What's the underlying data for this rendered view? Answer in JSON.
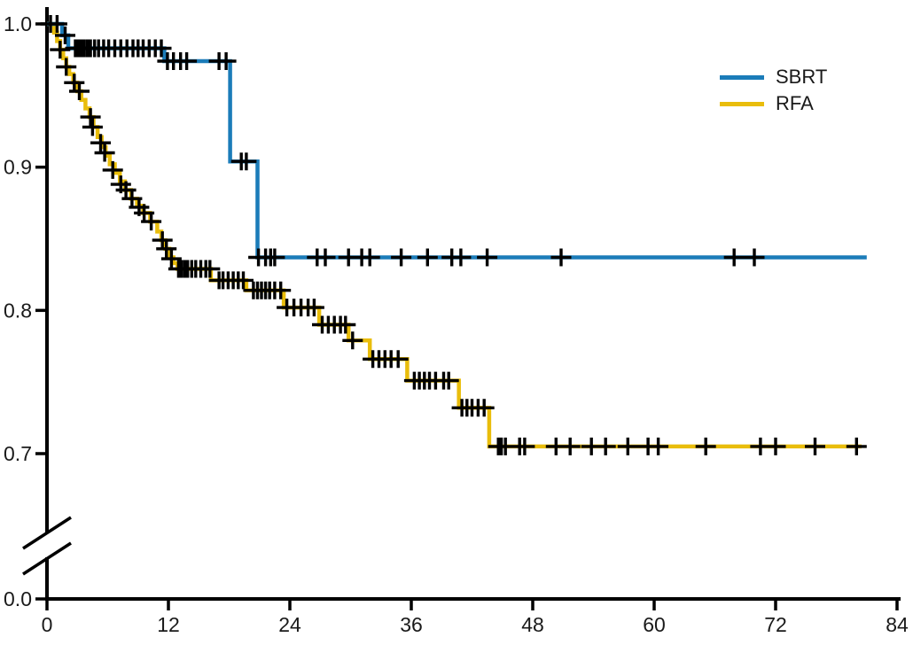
{
  "figure": {
    "kind": "kaplan-meier-survival-plot",
    "background": "#ffffff"
  },
  "axes": {
    "x_tick_labels": [
      "0",
      "12",
      "24",
      "36",
      "48",
      "60",
      "72",
      "84"
    ],
    "x_tick_values": [
      0,
      12,
      24,
      36,
      48,
      60,
      72,
      84
    ],
    "y_tick_labels": [
      "1.0",
      "0.9",
      "0.8",
      "0.7",
      "0.0"
    ],
    "y_tick_values": [
      1.0,
      0.9,
      0.8,
      0.7,
      0.0
    ],
    "y_axis_break": true,
    "axis_color": "#000000"
  },
  "legend": {
    "position": "top-right"
  },
  "chart_data": {
    "type": "line",
    "subtype": "kaplan-meier-step",
    "title": "",
    "xlabel": "",
    "ylabel": "",
    "x_range": [
      0,
      84
    ],
    "y_shown_range": [
      0.7,
      1.0
    ],
    "y_axis_break_between": [
      0.0,
      0.7
    ],
    "grid": false,
    "legend_position": "top-right",
    "censor_marker": "plus",
    "series": [
      {
        "name": "SBRT",
        "color": "#1b7cb9",
        "end_month": 81,
        "steps": [
          [
            0,
            1.0
          ],
          [
            1.5,
            0.992
          ],
          [
            2.1,
            0.983
          ],
          [
            11.6,
            0.974
          ],
          [
            18.1,
            0.904
          ],
          [
            20.8,
            0.837
          ]
        ],
        "censors": [
          [
            0.35,
            1.0
          ],
          [
            1.0,
            1.0
          ],
          [
            1.8,
            0.992
          ],
          [
            2.8,
            0.983
          ],
          [
            3.1,
            0.983
          ],
          [
            3.4,
            0.983
          ],
          [
            3.7,
            0.983
          ],
          [
            4.0,
            0.983
          ],
          [
            4.3,
            0.983
          ],
          [
            4.7,
            0.983
          ],
          [
            5.1,
            0.983
          ],
          [
            5.6,
            0.983
          ],
          [
            6.1,
            0.983
          ],
          [
            6.7,
            0.983
          ],
          [
            7.3,
            0.983
          ],
          [
            7.9,
            0.983
          ],
          [
            8.5,
            0.983
          ],
          [
            9.0,
            0.983
          ],
          [
            9.5,
            0.983
          ],
          [
            10.1,
            0.983
          ],
          [
            10.7,
            0.983
          ],
          [
            11.3,
            0.983
          ],
          [
            11.9,
            0.974
          ],
          [
            12.5,
            0.974
          ],
          [
            13.2,
            0.974
          ],
          [
            13.8,
            0.974
          ],
          [
            17.0,
            0.974
          ],
          [
            17.7,
            0.974
          ],
          [
            19.2,
            0.904
          ],
          [
            19.7,
            0.904
          ],
          [
            20.9,
            0.837
          ],
          [
            21.6,
            0.837
          ],
          [
            22.1,
            0.837
          ],
          [
            22.5,
            0.837
          ],
          [
            26.7,
            0.837
          ],
          [
            27.5,
            0.837
          ],
          [
            29.8,
            0.837
          ],
          [
            31.1,
            0.837
          ],
          [
            31.9,
            0.837
          ],
          [
            35.0,
            0.837
          ],
          [
            37.6,
            0.837
          ],
          [
            40.0,
            0.837
          ],
          [
            40.9,
            0.837
          ],
          [
            43.5,
            0.837
          ],
          [
            50.8,
            0.837
          ],
          [
            67.9,
            0.837
          ],
          [
            69.9,
            0.837
          ]
        ]
      },
      {
        "name": "RFA",
        "color": "#e9bd0b",
        "end_month": 80.5,
        "steps": [
          [
            0,
            1.0
          ],
          [
            0.7,
            0.994
          ],
          [
            1.0,
            0.988
          ],
          [
            1.3,
            0.982
          ],
          [
            1.6,
            0.976
          ],
          [
            1.9,
            0.97
          ],
          [
            2.2,
            0.965
          ],
          [
            2.6,
            0.959
          ],
          [
            3.0,
            0.953
          ],
          [
            3.4,
            0.947
          ],
          [
            3.8,
            0.941
          ],
          [
            4.2,
            0.935
          ],
          [
            4.6,
            0.928
          ],
          [
            5.0,
            0.921
          ],
          [
            5.4,
            0.914
          ],
          [
            5.8,
            0.908
          ],
          [
            6.2,
            0.902
          ],
          [
            6.7,
            0.896
          ],
          [
            7.2,
            0.89
          ],
          [
            7.7,
            0.884
          ],
          [
            8.3,
            0.878
          ],
          [
            8.9,
            0.873
          ],
          [
            9.5,
            0.868
          ],
          [
            10.2,
            0.862
          ],
          [
            10.9,
            0.855
          ],
          [
            11.3,
            0.849
          ],
          [
            11.7,
            0.843
          ],
          [
            12.1,
            0.837
          ],
          [
            12.5,
            0.833
          ],
          [
            12.9,
            0.829
          ],
          [
            16.2,
            0.821
          ],
          [
            19.7,
            0.814
          ],
          [
            23.4,
            0.802
          ],
          [
            26.9,
            0.79
          ],
          [
            29.8,
            0.779
          ],
          [
            31.9,
            0.766
          ],
          [
            35.6,
            0.751
          ],
          [
            40.7,
            0.732
          ],
          [
            43.7,
            0.705
          ]
        ],
        "censors": [
          [
            1.3,
            0.982
          ],
          [
            1.9,
            0.97
          ],
          [
            2.7,
            0.959
          ],
          [
            3.2,
            0.953
          ],
          [
            4.3,
            0.935
          ],
          [
            4.5,
            0.928
          ],
          [
            5.3,
            0.917
          ],
          [
            5.7,
            0.91
          ],
          [
            6.5,
            0.898
          ],
          [
            7.3,
            0.888
          ],
          [
            7.8,
            0.884
          ],
          [
            8.4,
            0.878
          ],
          [
            9.1,
            0.872
          ],
          [
            9.6,
            0.868
          ],
          [
            10.3,
            0.862
          ],
          [
            11.4,
            0.849
          ],
          [
            11.8,
            0.843
          ],
          [
            12.3,
            0.836
          ],
          [
            13.0,
            0.829
          ],
          [
            13.3,
            0.829
          ],
          [
            13.6,
            0.829
          ],
          [
            13.9,
            0.829
          ],
          [
            14.3,
            0.829
          ],
          [
            14.7,
            0.829
          ],
          [
            15.2,
            0.829
          ],
          [
            15.7,
            0.829
          ],
          [
            16.1,
            0.829
          ],
          [
            17.0,
            0.821
          ],
          [
            17.4,
            0.821
          ],
          [
            17.9,
            0.821
          ],
          [
            18.4,
            0.821
          ],
          [
            18.9,
            0.821
          ],
          [
            19.4,
            0.821
          ],
          [
            20.4,
            0.814
          ],
          [
            20.8,
            0.814
          ],
          [
            21.2,
            0.814
          ],
          [
            21.6,
            0.814
          ],
          [
            22.0,
            0.814
          ],
          [
            22.5,
            0.814
          ],
          [
            23.1,
            0.814
          ],
          [
            23.7,
            0.802
          ],
          [
            24.4,
            0.802
          ],
          [
            25.1,
            0.802
          ],
          [
            25.8,
            0.802
          ],
          [
            26.4,
            0.802
          ],
          [
            27.2,
            0.79
          ],
          [
            27.8,
            0.79
          ],
          [
            28.4,
            0.79
          ],
          [
            29.0,
            0.79
          ],
          [
            29.5,
            0.79
          ],
          [
            30.2,
            0.779
          ],
          [
            32.2,
            0.766
          ],
          [
            32.8,
            0.766
          ],
          [
            33.4,
            0.766
          ],
          [
            34.0,
            0.766
          ],
          [
            34.7,
            0.766
          ],
          [
            36.3,
            0.751
          ],
          [
            36.8,
            0.751
          ],
          [
            37.3,
            0.751
          ],
          [
            37.8,
            0.751
          ],
          [
            38.4,
            0.751
          ],
          [
            39.2,
            0.751
          ],
          [
            39.7,
            0.751
          ],
          [
            41.0,
            0.732
          ],
          [
            41.5,
            0.732
          ],
          [
            42.0,
            0.732
          ],
          [
            42.6,
            0.732
          ],
          [
            43.2,
            0.732
          ],
          [
            44.6,
            0.705
          ],
          [
            44.9,
            0.705
          ],
          [
            45.3,
            0.705
          ],
          [
            46.7,
            0.705
          ],
          [
            47.2,
            0.705
          ],
          [
            50.3,
            0.705
          ],
          [
            51.7,
            0.705
          ],
          [
            53.8,
            0.705
          ],
          [
            55.2,
            0.705
          ],
          [
            57.4,
            0.705
          ],
          [
            59.4,
            0.705
          ],
          [
            60.4,
            0.705
          ],
          [
            65.1,
            0.705
          ],
          [
            70.5,
            0.705
          ],
          [
            72.0,
            0.705
          ],
          [
            75.9,
            0.705
          ],
          [
            80.0,
            0.705
          ]
        ]
      }
    ]
  }
}
